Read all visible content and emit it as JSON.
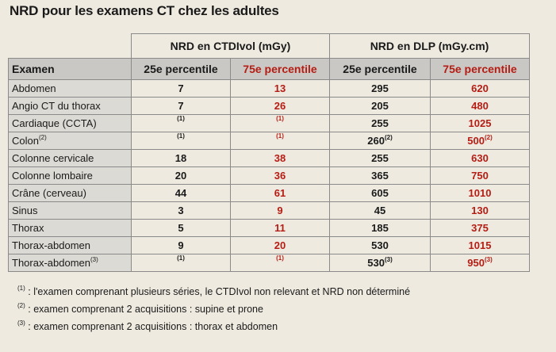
{
  "title": "NRD pour les examens CT chez les adultes",
  "header": {
    "group_ctdi": "NRD en CTDIvol (mGy)",
    "group_dlp": "NRD en DLP (mGy.cm)",
    "col_exam": "Examen",
    "col_p25_ctdi": "25e percentile",
    "col_p75_ctdi": "75e percentile",
    "col_p25_dlp": "25e percentile",
    "col_p75_dlp": "75e percentile"
  },
  "rows": [
    {
      "exam": "Abdomen",
      "exam_sup": "",
      "ctdi25": "7",
      "ctdi25_sup": "",
      "ctdi75": "13",
      "ctdi75_sup": "",
      "dlp25": "295",
      "dlp25_sup": "",
      "dlp75": "620",
      "dlp75_sup": ""
    },
    {
      "exam": "Angio CT du thorax",
      "exam_sup": "",
      "ctdi25": "7",
      "ctdi25_sup": "",
      "ctdi75": "26",
      "ctdi75_sup": "",
      "dlp25": "205",
      "dlp25_sup": "",
      "dlp75": "480",
      "dlp75_sup": ""
    },
    {
      "exam": "Cardiaque (CCTA)",
      "exam_sup": "",
      "ctdi25": "",
      "ctdi25_sup": "(1)",
      "ctdi75": "",
      "ctdi75_sup": "(1)",
      "dlp25": "255",
      "dlp25_sup": "",
      "dlp75": "1025",
      "dlp75_sup": ""
    },
    {
      "exam": "Colon",
      "exam_sup": "(2)",
      "ctdi25": "",
      "ctdi25_sup": "(1)",
      "ctdi75": "",
      "ctdi75_sup": "(1)",
      "dlp25": "260",
      "dlp25_sup": "(2)",
      "dlp75": "500",
      "dlp75_sup": "(2)"
    },
    {
      "exam": "Colonne cervicale",
      "exam_sup": "",
      "ctdi25": "18",
      "ctdi25_sup": "",
      "ctdi75": "38",
      "ctdi75_sup": "",
      "dlp25": "255",
      "dlp25_sup": "",
      "dlp75": "630",
      "dlp75_sup": ""
    },
    {
      "exam": "Colonne lombaire",
      "exam_sup": "",
      "ctdi25": "20",
      "ctdi25_sup": "",
      "ctdi75": "36",
      "ctdi75_sup": "",
      "dlp25": "365",
      "dlp25_sup": "",
      "dlp75": "750",
      "dlp75_sup": ""
    },
    {
      "exam": "Crâne (cerveau)",
      "exam_sup": "",
      "ctdi25": "44",
      "ctdi25_sup": "",
      "ctdi75": "61",
      "ctdi75_sup": "",
      "dlp25": "605",
      "dlp25_sup": "",
      "dlp75": "1010",
      "dlp75_sup": ""
    },
    {
      "exam": "Sinus",
      "exam_sup": "",
      "ctdi25": "3",
      "ctdi25_sup": "",
      "ctdi75": "9",
      "ctdi75_sup": "",
      "dlp25": "45",
      "dlp25_sup": "",
      "dlp75": "130",
      "dlp75_sup": ""
    },
    {
      "exam": "Thorax",
      "exam_sup": "",
      "ctdi25": "5",
      "ctdi25_sup": "",
      "ctdi75": "11",
      "ctdi75_sup": "",
      "dlp25": "185",
      "dlp25_sup": "",
      "dlp75": "375",
      "dlp75_sup": ""
    },
    {
      "exam": "Thorax-abdomen",
      "exam_sup": "",
      "ctdi25": "9",
      "ctdi25_sup": "",
      "ctdi75": "20",
      "ctdi75_sup": "",
      "dlp25": "530",
      "dlp25_sup": "",
      "dlp75": "1015",
      "dlp75_sup": ""
    },
    {
      "exam": "Thorax-abdomen",
      "exam_sup": "(3)",
      "ctdi25": "",
      "ctdi25_sup": "(1)",
      "ctdi75": "",
      "ctdi75_sup": "(1)",
      "dlp25": "530",
      "dlp25_sup": "(3)",
      "dlp75": "950",
      "dlp75_sup": "(3)"
    }
  ],
  "footnotes": [
    {
      "mark": "(1)",
      "text": " : l'examen comprenant plusieurs séries, le CTDIvol non relevant et  NRD non déterminé"
    },
    {
      "mark": "(2)",
      "text": " : examen comprenant 2 acquisitions : supine et prone"
    },
    {
      "mark": "(3)",
      "text": " : examen comprenant 2 acquisitions : thorax et abdomen"
    }
  ]
}
